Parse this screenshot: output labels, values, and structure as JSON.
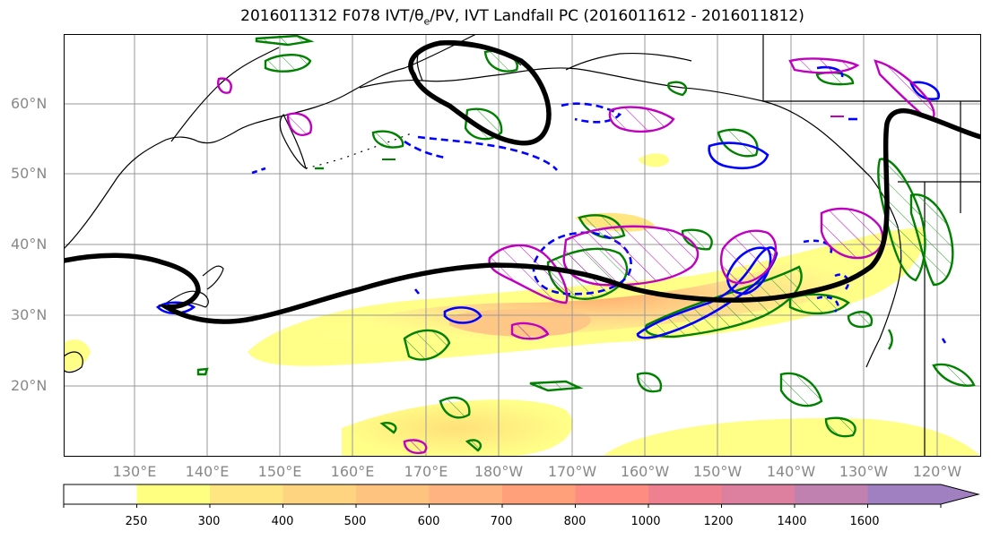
{
  "title": {
    "prefix": "2016011312 F078 IVT/",
    "theta": "θ",
    "theta_sub": "e",
    "suffix": "/PV, IVT Landfall PC (2016011612 - 2016011812)"
  },
  "map": {
    "lat_labels": [
      "60°N",
      "50°N",
      "40°N",
      "30°N",
      "20°N"
    ],
    "lon_labels": [
      "130°E",
      "140°E",
      "150°E",
      "160°E",
      "170°E",
      "180°W",
      "170°W",
      "160°W",
      "150°W",
      "140°W",
      "130°W",
      "120°W"
    ],
    "contour_colors": {
      "black": "#000000",
      "green": "#008000",
      "blue": "#0000ff",
      "magenta": "#bf00bf"
    }
  },
  "colorbar": {
    "tick_labels": [
      "250",
      "300",
      "400",
      "500",
      "600",
      "700",
      "800",
      "1000",
      "1200",
      "1400",
      "1600"
    ],
    "colors": [
      "#ffffff",
      "#ffff80",
      "#ffe680",
      "#ffd480",
      "#ffc380",
      "#ffb380",
      "#ffa07a",
      "#ff8c80",
      "#ee8090",
      "#dd80a0",
      "#c080b0",
      "#a080c0"
    ]
  }
}
